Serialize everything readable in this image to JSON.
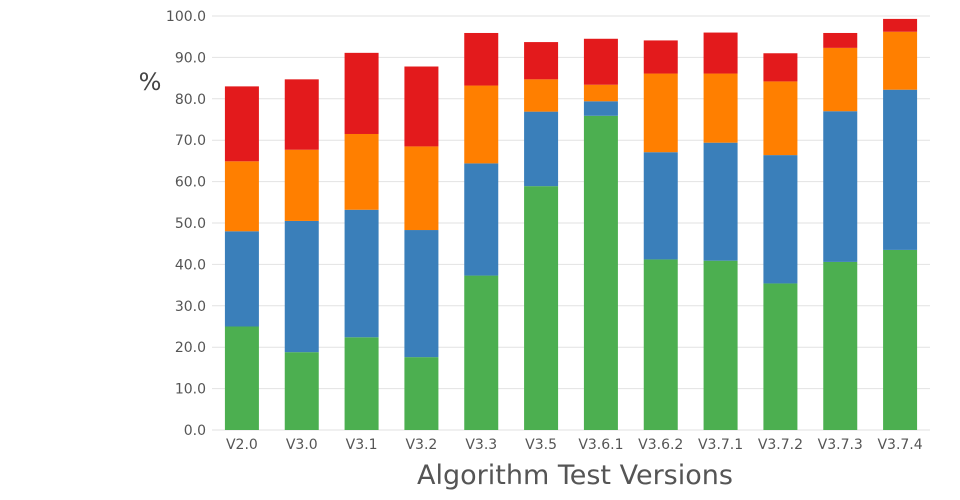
{
  "chart_data": {
    "type": "bar",
    "stacked": true,
    "title": "",
    "xlabel": "Algorithm Test Versions",
    "ylabel": "%",
    "ylim": [
      0,
      100
    ],
    "yticks": [
      "0.0",
      "10.0",
      "20.0",
      "30.0",
      "40.0",
      "50.0",
      "60.0",
      "70.0",
      "80.0",
      "90.0",
      "100.0"
    ],
    "grid": true,
    "legend": "none",
    "categories": [
      "V2.0",
      "V3.0",
      "V3.1",
      "V3.2",
      "V3.3",
      "V3.5",
      "V3.6.1",
      "V3.6.2",
      "V3.7.1",
      "V3.7.2",
      "V3.7.3",
      "V3.7.4"
    ],
    "series": [
      {
        "color": "#4caf50",
        "values": [
          25.0,
          18.8,
          22.4,
          17.6,
          37.3,
          58.9,
          75.9,
          41.2,
          40.9,
          35.4,
          40.6,
          43.5
        ]
      },
      {
        "color": "#3a7fba",
        "values": [
          23.0,
          31.7,
          30.8,
          30.7,
          27.1,
          18.0,
          3.5,
          25.9,
          28.5,
          31.0,
          36.4,
          38.7
        ]
      },
      {
        "color": "#ff7f00",
        "values": [
          16.9,
          17.2,
          18.3,
          20.2,
          18.8,
          7.8,
          4.0,
          19.0,
          16.7,
          17.8,
          15.3,
          14.0
        ]
      },
      {
        "color": "#e31a1c",
        "values": [
          18.1,
          17.0,
          19.6,
          19.3,
          12.7,
          9.0,
          11.1,
          8.0,
          9.9,
          6.8,
          3.6,
          3.1
        ]
      }
    ]
  }
}
